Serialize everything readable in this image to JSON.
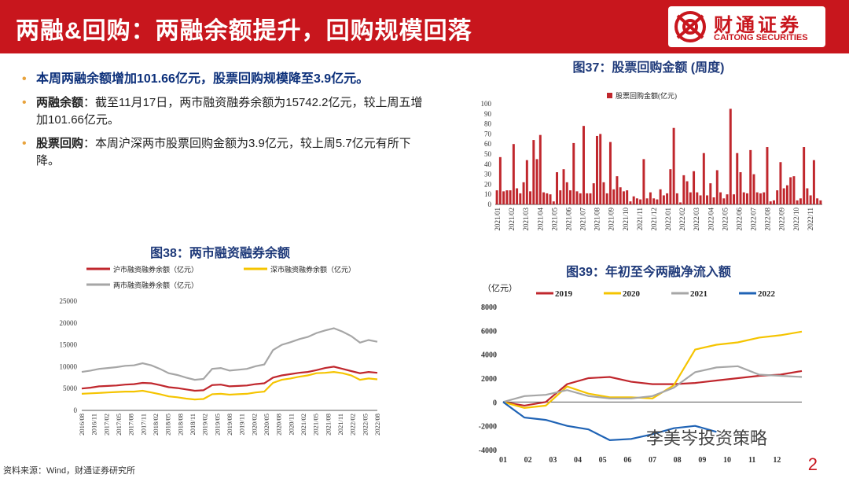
{
  "header": {
    "title": "两融&回购：两融余额提升，回购规模回落"
  },
  "logo": {
    "cn": "财通证券",
    "en": "CAITONG SECURITIES"
  },
  "bullets": {
    "b1": "本周两融余额增加101.66亿元，股票回购规模降至3.9亿元。",
    "b2_label": "两融余额",
    "b2_text": "：截至11月17日，两市融资融券余额为15742.2亿元，较上周五增加101.66亿元。",
    "b3_label": "股票回购",
    "b3_text": "：本周沪深两市股票回购金额为3.9亿元，较上周5.7亿元有所下降。"
  },
  "fig37": {
    "title": "图37：股票回购金额 (周度)",
    "legend": "股票回购金额(亿元)"
  },
  "fig38": {
    "title": "图38：两市融资融券余额",
    "legend": [
      "沪市融资融券余额（亿元）",
      "深市融资融券余额（亿元）",
      "两市融资融券余额（亿元）"
    ]
  },
  "fig39": {
    "title": "图39：年初至今两融净流入额",
    "unit": "（亿元）",
    "legend": [
      "2019",
      "2020",
      "2021",
      "2022"
    ]
  },
  "source": "资料来源：Wind，财通证券研究所",
  "watermark": "李美岑投资策略",
  "page_number": "2",
  "colors": {
    "brand": "#c8161d",
    "red": "#c0272d",
    "yellow": "#f5c400",
    "gray": "#a6a6a6",
    "blue": "#1f63b5"
  },
  "chart_data": [
    {
      "type": "bar",
      "title": "图37：股票回购金额 (周度)",
      "legend": [
        "股票回购金额(亿元)"
      ],
      "ylim": [
        0,
        100
      ],
      "yticks": [
        0,
        10,
        20,
        30,
        40,
        50,
        60,
        70,
        80,
        90,
        100
      ],
      "xticks": [
        "2021/01",
        "2021/02",
        "2021/03",
        "2021/04",
        "2021/05",
        "2021/06",
        "2021/07",
        "2021/08",
        "2021/09",
        "2021/10",
        "2021/11",
        "2021/12",
        "2022/01",
        "2022/02",
        "2022/03",
        "2022/04",
        "2022/05",
        "2022/06",
        "2022/07",
        "2022/08",
        "2022/09",
        "2022/10",
        "2022/11"
      ],
      "values": [
        14,
        47,
        13,
        14,
        14,
        60,
        16,
        11,
        22,
        44,
        13,
        64,
        45,
        69,
        12,
        11,
        10,
        3,
        32,
        14,
        35,
        22,
        14,
        61,
        13,
        11,
        78,
        11,
        11,
        21,
        68,
        70,
        22,
        11,
        62,
        15,
        28,
        17,
        13,
        14,
        3,
        8,
        6,
        5,
        45,
        6,
        12,
        6,
        5,
        15,
        9,
        11,
        35,
        76,
        11,
        2,
        29,
        23,
        12,
        33,
        12,
        9,
        51,
        9,
        21,
        7,
        34,
        12,
        6,
        10,
        95,
        10,
        51,
        32,
        12,
        11,
        54,
        30,
        12,
        11,
        12,
        57,
        3,
        4,
        14,
        42,
        16,
        19,
        27,
        28,
        4,
        6,
        57,
        16,
        9,
        44,
        6,
        4
      ],
      "unit": "亿元"
    },
    {
      "type": "line",
      "title": "图38：两市融资融券余额",
      "ylim": [
        0,
        25000
      ],
      "yticks": [
        0,
        5000,
        10000,
        15000,
        20000,
        25000
      ],
      "xticks": [
        "2016/08",
        "2016/11",
        "2017/02",
        "2017/05",
        "2017/08",
        "2017/11",
        "2018/02",
        "2018/05",
        "2018/08",
        "2018/11",
        "2019/02",
        "2019/05",
        "2019/08",
        "2019/11",
        "2020/02",
        "2020/05",
        "2020/08",
        "2020/11",
        "2021/02",
        "2021/05",
        "2021/08",
        "2021/11",
        "2022/02",
        "2022/05",
        "2022/08"
      ],
      "series": [
        {
          "name": "沪市融资融券余额（亿元）",
          "values": [
            5000,
            5200,
            5500,
            5600,
            5700,
            5900,
            6000,
            6300,
            6200,
            5800,
            5300,
            5100,
            4800,
            4500,
            4600,
            5800,
            5900,
            5500,
            5600,
            5700,
            6000,
            6200,
            7500,
            8000,
            8300,
            8600,
            8800,
            9200,
            9700,
            10000,
            9500,
            9000,
            8500,
            8800,
            8600
          ]
        },
        {
          "name": "深市融资融券余额（亿元）",
          "values": [
            3800,
            3900,
            4000,
            4100,
            4200,
            4300,
            4300,
            4500,
            4100,
            3700,
            3200,
            3000,
            2700,
            2500,
            2600,
            3700,
            3800,
            3600,
            3700,
            3800,
            4100,
            4300,
            6300,
            7000,
            7300,
            7700,
            8000,
            8500,
            8600,
            8800,
            8500,
            8000,
            7000,
            7300,
            7100
          ]
        },
        {
          "name": "两市融资融券余额（亿元）",
          "values": [
            8800,
            9100,
            9500,
            9700,
            9900,
            10200,
            10300,
            10800,
            10300,
            9500,
            8500,
            8100,
            7500,
            7000,
            7200,
            9500,
            9700,
            9100,
            9300,
            9500,
            10100,
            10500,
            13800,
            15000,
            15600,
            16300,
            16800,
            17700,
            18300,
            18800,
            18000,
            17000,
            15500,
            16100,
            15700
          ]
        }
      ]
    },
    {
      "type": "line",
      "title": "图39：年初至今两融净流入额",
      "ylabel": "（亿元）",
      "ylim": [
        -4000,
        8000
      ],
      "yticks": [
        -4000,
        -2000,
        0,
        2000,
        4000,
        6000,
        8000
      ],
      "xticks": [
        "01",
        "02",
        "03",
        "04",
        "05",
        "06",
        "07",
        "08",
        "09",
        "10",
        "11",
        "12"
      ],
      "series": [
        {
          "name": "2019",
          "values": [
            0,
            -300,
            0,
            1500,
            2000,
            2100,
            1700,
            1500,
            1500,
            1600,
            1800,
            2000,
            2200,
            2300,
            2600
          ]
        },
        {
          "name": "2020",
          "values": [
            0,
            -500,
            -300,
            1300,
            700,
            400,
            400,
            300,
            1400,
            4400,
            4800,
            5000,
            5400,
            5600,
            5900
          ]
        },
        {
          "name": "2021",
          "values": [
            0,
            500,
            600,
            1000,
            500,
            300,
            300,
            500,
            1200,
            2500,
            2900,
            3000,
            2300,
            2200,
            2100
          ]
        },
        {
          "name": "2022",
          "values": [
            0,
            -1300,
            -1500,
            -2000,
            -2300,
            -3200,
            -3100,
            -2700,
            -2200,
            -2000,
            -2500
          ]
        }
      ]
    }
  ]
}
